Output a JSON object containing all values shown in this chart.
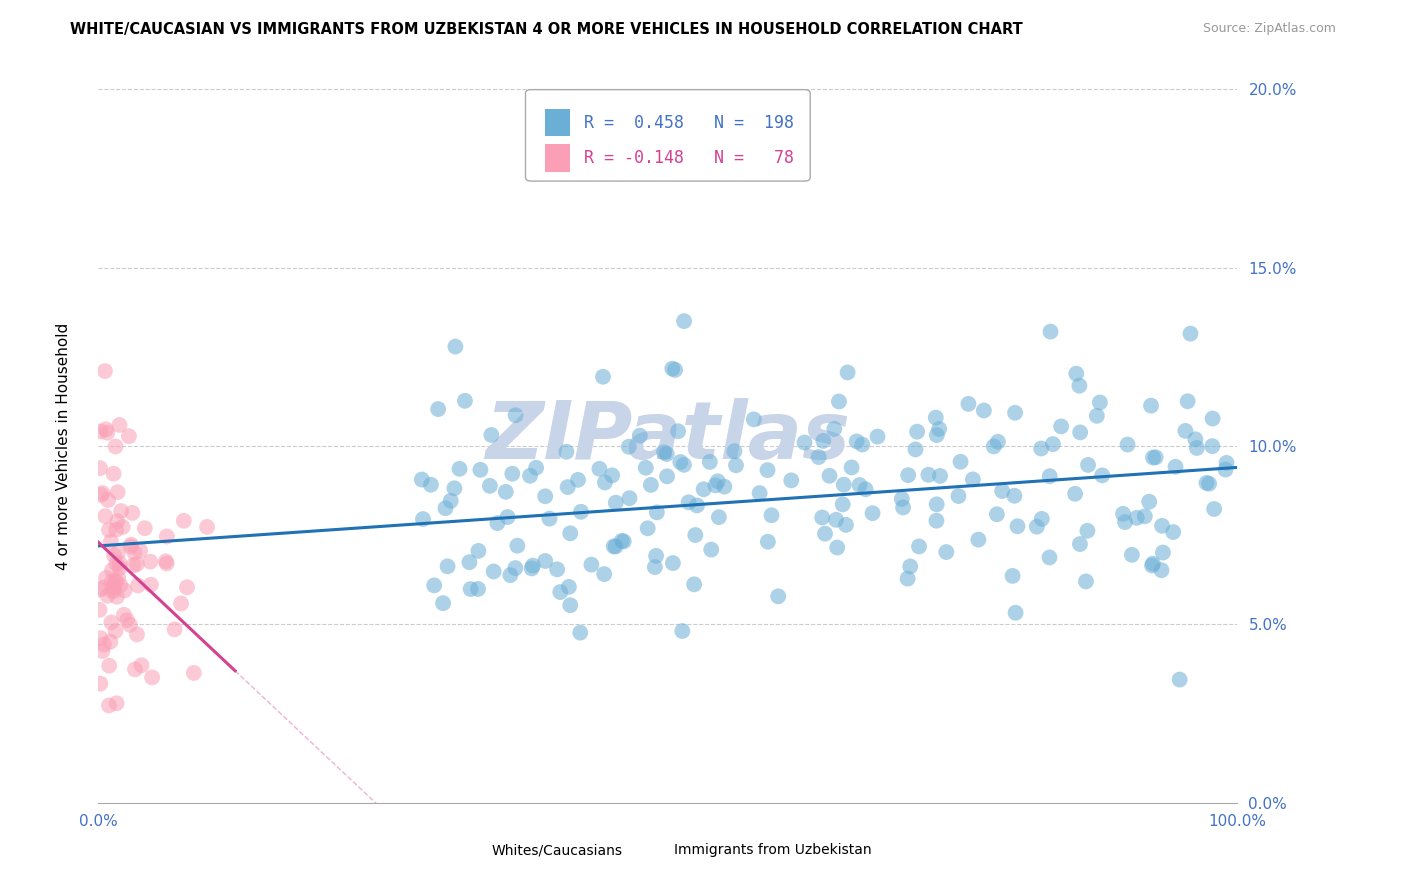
{
  "title": "WHITE/CAUCASIAN VS IMMIGRANTS FROM UZBEKISTAN 4 OR MORE VEHICLES IN HOUSEHOLD CORRELATION CHART",
  "source": "Source: ZipAtlas.com",
  "ylabel": "4 or more Vehicles in Household",
  "xlim": [
    0.0,
    1.0
  ],
  "ylim": [
    0.0,
    0.205
  ],
  "yticks": [
    0.0,
    0.05,
    0.1,
    0.15,
    0.2
  ],
  "yticklabels": [
    "0.0%",
    "5.0%",
    "10.0%",
    "15.0%",
    "20.0%"
  ],
  "blue_R": 0.458,
  "blue_N": 198,
  "pink_R": -0.148,
  "pink_N": 78,
  "blue_color": "#6baed6",
  "pink_color": "#fa9fb5",
  "blue_line_color": "#2171b5",
  "pink_line_color": "#d44292",
  "blue_line_slope": 0.022,
  "blue_line_intercept": 0.072,
  "pink_line_slope": -0.3,
  "pink_line_intercept": 0.073,
  "watermark": "ZIPatlas",
  "watermark_color": "#c8d4e8",
  "legend_label_blue": "Whites/Caucasians",
  "legend_label_pink": "Immigrants from Uzbekistan",
  "tick_color": "#4472c4"
}
